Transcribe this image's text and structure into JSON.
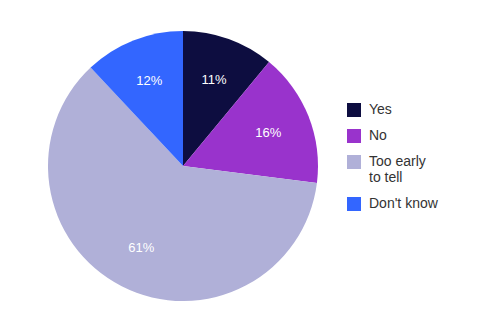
{
  "chart_data": {
    "type": "pie",
    "categories": [
      "Yes",
      "No",
      "Too early\nto tell",
      "Don't know"
    ],
    "values": [
      11,
      16,
      61,
      12
    ],
    "value_labels": [
      "11%",
      "16%",
      "61%",
      "12%"
    ],
    "colors": [
      "#0d0d40",
      "#9933cc",
      "#b0b0d8",
      "#3366ff"
    ],
    "data_labels": true,
    "legend": "right"
  }
}
